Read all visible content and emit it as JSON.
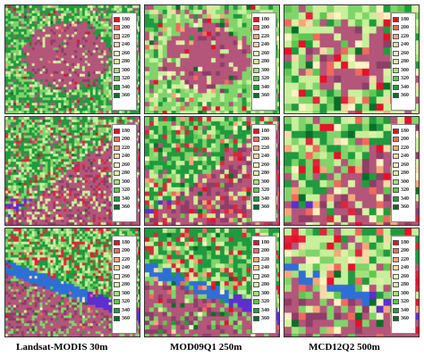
{
  "columns": [
    {
      "caption": "Landsat-MODIS 30m"
    },
    {
      "caption": "MOD09Q1 250m"
    },
    {
      "caption": "MCD12Q2  500m"
    }
  ],
  "legend": {
    "items": [
      {
        "label": "180",
        "color": "#e8102a"
      },
      {
        "label": "200",
        "color": "#f06a5c"
      },
      {
        "label": "220",
        "color": "#f5a77a"
      },
      {
        "label": "240",
        "color": "#f7d9a8"
      },
      {
        "label": "260",
        "color": "#fbf3c4"
      },
      {
        "label": "280",
        "color": "#d8f2a3"
      },
      {
        "label": "300",
        "color": "#a5e07a"
      },
      {
        "label": "320",
        "color": "#5fc750"
      },
      {
        "label": "340",
        "color": "#1e9e3a"
      },
      {
        "label": "360",
        "color": "#0a6e2a"
      }
    ]
  },
  "palette": {
    "urban": "#b4557a",
    "urban_dark": "#8e3e68",
    "water": "#2e6fd6",
    "water_purple": "#5c2fd0",
    "forest": "#1f9a3e",
    "grass": "#7fd46a",
    "light_green": "#c8ef9a",
    "red_patch": "#e0243a"
  },
  "panels": [
    {
      "row": 0,
      "col": 0,
      "scene": "urban",
      "texture": "fine"
    },
    {
      "row": 0,
      "col": 1,
      "scene": "urban",
      "texture": "medium"
    },
    {
      "row": 0,
      "col": 2,
      "scene": "urban",
      "texture": "coarse"
    },
    {
      "row": 1,
      "col": 0,
      "scene": "mixed",
      "texture": "fine"
    },
    {
      "row": 1,
      "col": 1,
      "scene": "mixed",
      "texture": "medium"
    },
    {
      "row": 1,
      "col": 2,
      "scene": "mixed",
      "texture": "coarse"
    },
    {
      "row": 2,
      "col": 0,
      "scene": "river",
      "texture": "fine"
    },
    {
      "row": 2,
      "col": 1,
      "scene": "river",
      "texture": "medium"
    },
    {
      "row": 2,
      "col": 2,
      "scene": "river",
      "texture": "coarse"
    }
  ]
}
